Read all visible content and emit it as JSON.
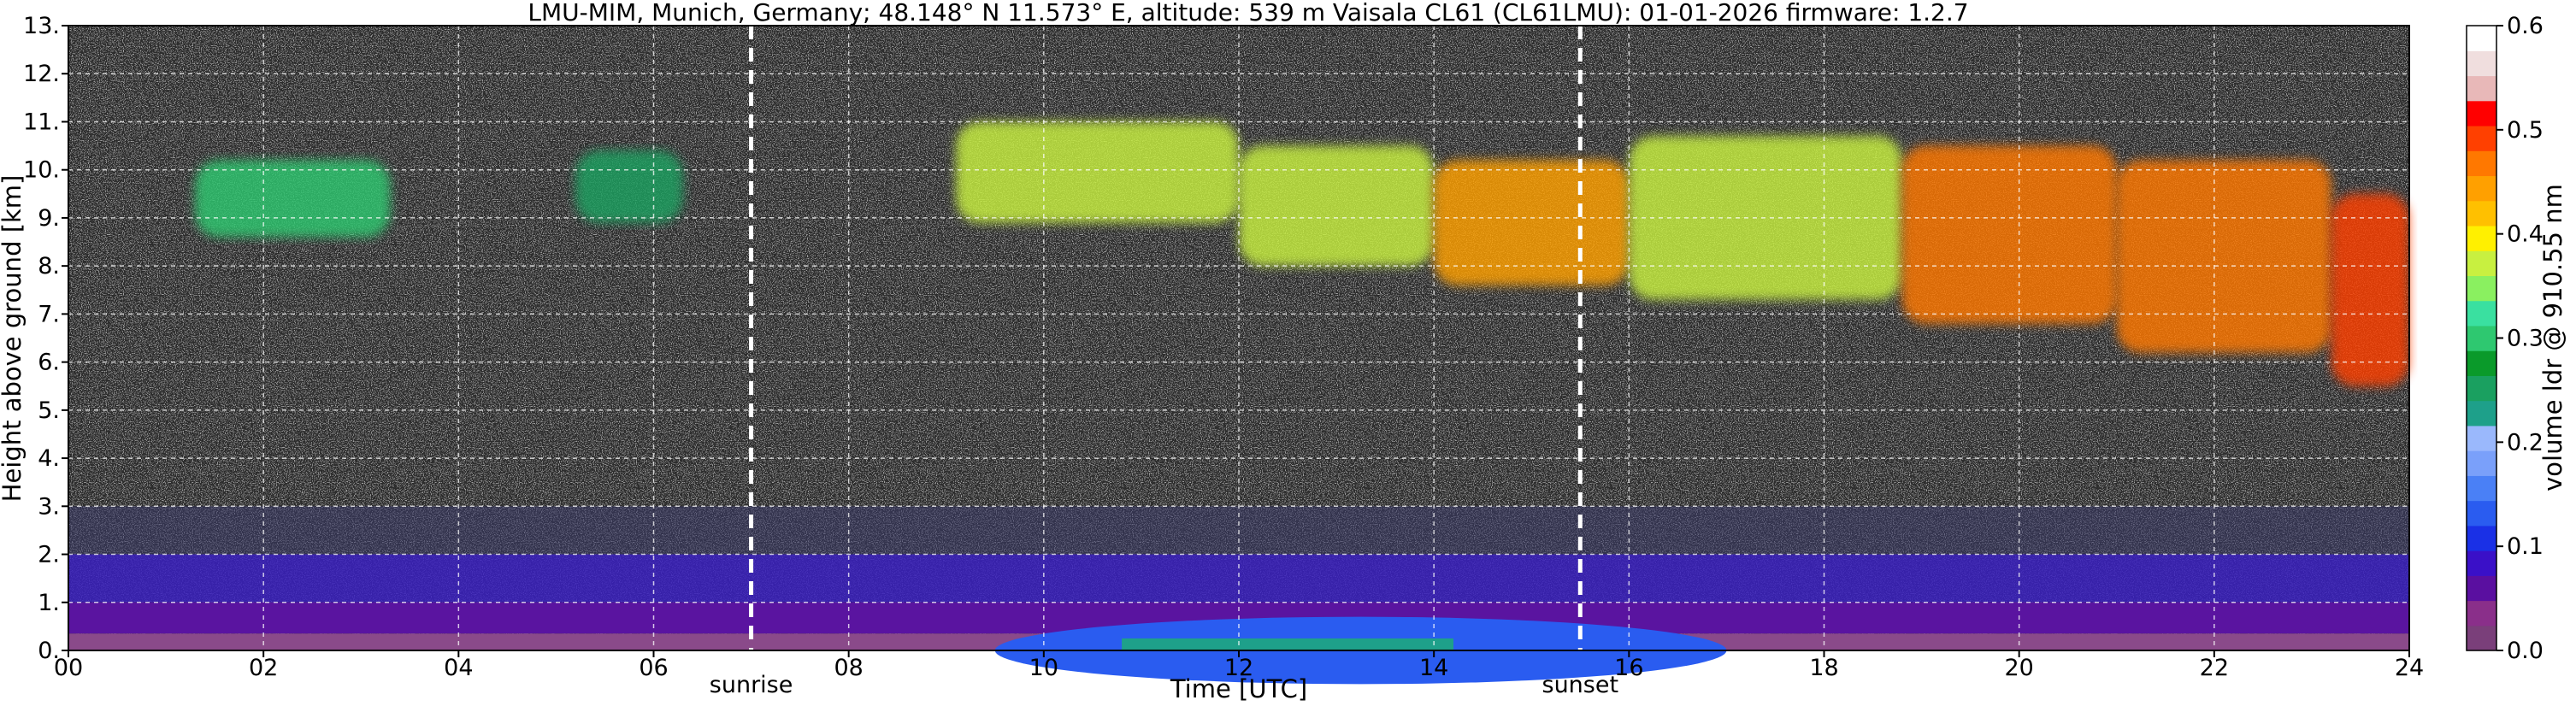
{
  "chart_data": {
    "type": "heatmap",
    "title": "LMU-MIM, Munich, Germany; 48.148° N 11.573° E, altitude: 539 m    Vaisala CL61 (CL61LMU): 01-01-2026    firmware: 1.2.7",
    "xlabel": "Time [UTC]",
    "ylabel": "Height above ground [km]",
    "xlim": [
      0,
      24
    ],
    "ylim": [
      0,
      13
    ],
    "x_ticks": [
      0,
      2,
      4,
      6,
      8,
      10,
      12,
      14,
      16,
      18,
      20,
      22,
      24
    ],
    "x_tick_labels": [
      "00",
      "02",
      "04",
      "06",
      "08",
      "10",
      "12",
      "14",
      "16",
      "18",
      "20",
      "22",
      "24"
    ],
    "y_ticks": [
      0,
      1,
      2,
      3,
      4,
      5,
      6,
      7,
      8,
      9,
      10,
      11,
      12,
      13
    ],
    "y_tick_labels": [
      "0.",
      "1.",
      "2.",
      "3.",
      "4.",
      "5.",
      "6.",
      "7.",
      "8.",
      "9.",
      "10.",
      "11.",
      "12.",
      "13."
    ],
    "grid": true,
    "annotations": [
      {
        "text": "sunrise",
        "x": 7.0
      },
      {
        "text": "sunset",
        "x": 15.5
      }
    ],
    "colorbar": {
      "label": "volume ldr @ 910.55 nm",
      "range": [
        0.0,
        0.6
      ],
      "ticks": [
        0.0,
        0.1,
        0.2,
        0.3,
        0.4,
        0.5,
        0.6
      ],
      "tick_labels": [
        "0.0",
        "0.1",
        "0.2",
        "0.3",
        "0.4",
        "0.5",
        "0.6"
      ],
      "colors": [
        "#7a3f7a",
        "#8a2f8a",
        "#5a0fa0",
        "#3a10c8",
        "#1a30e6",
        "#2a5cf0",
        "#4a80f6",
        "#7aa0fa",
        "#9ab8fc",
        "#1ea08a",
        "#1aa060",
        "#0a9a2a",
        "#2ec870",
        "#3ae0a0",
        "#8af060",
        "#c8f040",
        "#fff000",
        "#ffc000",
        "#ffa000",
        "#ff7800",
        "#ff4000",
        "#ff0000",
        "#e8b8b8",
        "#f0dede",
        "#ffffff"
      ]
    },
    "cloud_layers": [
      {
        "t_start": 1.3,
        "t_end": 3.3,
        "base_km": 8.6,
        "top_km": 10.2,
        "ldr": 0.3
      },
      {
        "t_start": 5.2,
        "t_end": 6.3,
        "base_km": 8.9,
        "top_km": 10.4,
        "ldr": 0.25
      },
      {
        "t_start": 9.1,
        "t_end": 12.0,
        "base_km": 8.9,
        "top_km": 11.0,
        "ldr": 0.38
      },
      {
        "t_start": 12.0,
        "t_end": 14.0,
        "base_km": 8.0,
        "top_km": 10.5,
        "ldr": 0.38
      },
      {
        "t_start": 14.0,
        "t_end": 16.0,
        "base_km": 7.6,
        "top_km": 10.2,
        "ldr": 0.44
      },
      {
        "t_start": 16.0,
        "t_end": 18.8,
        "base_km": 7.3,
        "top_km": 10.7,
        "ldr": 0.36
      },
      {
        "t_start": 18.8,
        "t_end": 21.0,
        "base_km": 6.8,
        "top_km": 10.5,
        "ldr": 0.46
      },
      {
        "t_start": 21.0,
        "t_end": 23.2,
        "base_km": 6.2,
        "top_km": 10.2,
        "ldr": 0.46
      },
      {
        "t_start": 23.2,
        "t_end": 24.0,
        "base_km": 5.5,
        "top_km": 9.5,
        "ldr": 0.48
      }
    ],
    "boundary_layer": {
      "background_noise_top_km": 3.0,
      "blue_layer_top_km": 2.0,
      "purple_layer_top_km": 1.0,
      "daytime_aerosol": {
        "t_start": 9.5,
        "t_end": 17.0,
        "top_km": 0.7,
        "ldr": 0.12
      },
      "ground_green": {
        "t_start": 10.8,
        "t_end": 14.2,
        "top_km": 0.25,
        "ldr": 0.22
      }
    }
  }
}
